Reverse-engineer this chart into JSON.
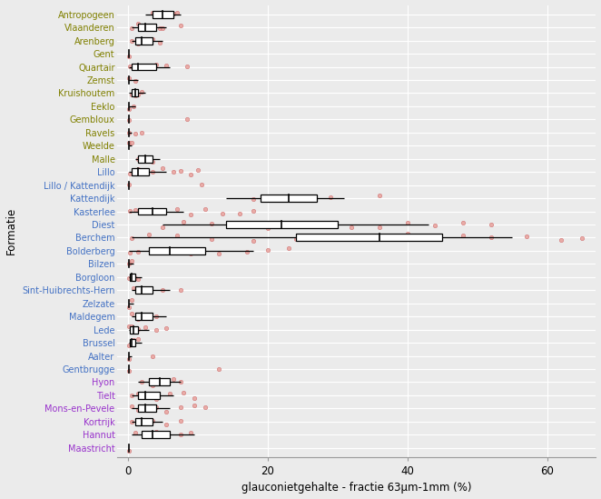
{
  "formations": [
    "Antropogeen",
    "Vlaanderen",
    "Arenberg",
    "Gent",
    "Quartair",
    "Zemst",
    "Kruishoutem",
    "Eeklo",
    "Gembloux",
    "Ravels",
    "Weelde",
    "Malle",
    "Lillo",
    "Lillo / Kattendijk",
    "Kattendijk",
    "Kasterlee",
    "Diest",
    "Berchem",
    "Bolderberg",
    "Bilzen",
    "Borgloon",
    "Sint-Huibrechts-Hern",
    "Zelzate",
    "Maldegem",
    "Lede",
    "Brussel",
    "Aalter",
    "Gentbrugge",
    "Hyon",
    "Tielt",
    "Mons-en-Pevele",
    "Kortrijk",
    "Hannut",
    "Maastricht"
  ],
  "label_colors": {
    "Antropogeen": "#808000",
    "Vlaanderen": "#808000",
    "Arenberg": "#808000",
    "Gent": "#808000",
    "Quartair": "#808000",
    "Zemst": "#808000",
    "Kruishoutem": "#808000",
    "Eeklo": "#808000",
    "Gembloux": "#808000",
    "Ravels": "#808000",
    "Weelde": "#808000",
    "Malle": "#808000",
    "Lillo": "#4472C4",
    "Lillo / Kattendijk": "#4472C4",
    "Kattendijk": "#4472C4",
    "Kasterlee": "#4472C4",
    "Diest": "#4472C4",
    "Berchem": "#4472C4",
    "Bolderberg": "#4472C4",
    "Bilzen": "#4472C4",
    "Borgloon": "#4472C4",
    "Sint-Huibrechts-Hern": "#4472C4",
    "Zelzate": "#4472C4",
    "Maldegem": "#4472C4",
    "Lede": "#4472C4",
    "Brussel": "#4472C4",
    "Aalter": "#4472C4",
    "Gentbrugge": "#4472C4",
    "Hyon": "#9933CC",
    "Tielt": "#9933CC",
    "Mons-en-Pevele": "#9933CC",
    "Kortrijk": "#9933CC",
    "Hannut": "#9933CC",
    "Maastricht": "#9933CC"
  },
  "boxplot_data": {
    "Antropogeen": {
      "min": 2.5,
      "q1": 3.5,
      "median": 5.0,
      "q3": 6.5,
      "max": 7.5
    },
    "Vlaanderen": {
      "min": 0.5,
      "q1": 1.5,
      "median": 2.5,
      "q3": 4.0,
      "max": 5.5
    },
    "Arenberg": {
      "min": 0.5,
      "q1": 1.0,
      "median": 2.0,
      "q3": 3.5,
      "max": 5.0
    },
    "Gent": {
      "min": 0.2,
      "q1": 0.2,
      "median": 0.2,
      "q3": 0.2,
      "max": 0.2
    },
    "Quartair": {
      "min": 0.2,
      "q1": 0.5,
      "median": 1.5,
      "q3": 4.0,
      "max": 6.0
    },
    "Zemst": {
      "min": 0.2,
      "q1": 0.2,
      "median": 0.2,
      "q3": 0.2,
      "max": 1.5
    },
    "Kruishoutem": {
      "min": 0.2,
      "q1": 0.5,
      "median": 1.0,
      "q3": 1.5,
      "max": 2.5
    },
    "Eeklo": {
      "min": 0.2,
      "q1": 0.2,
      "median": 0.2,
      "q3": 0.2,
      "max": 1.0
    },
    "Gembloux": {
      "min": 0.2,
      "q1": 0.2,
      "median": 0.2,
      "q3": 0.2,
      "max": 0.2
    },
    "Ravels": {
      "min": 0.2,
      "q1": 0.2,
      "median": 0.2,
      "q3": 0.2,
      "max": 0.5
    },
    "Weelde": {
      "min": 0.2,
      "q1": 0.2,
      "median": 0.2,
      "q3": 0.2,
      "max": 0.5
    },
    "Malle": {
      "min": 1.0,
      "q1": 1.5,
      "median": 2.5,
      "q3": 3.5,
      "max": 4.5
    },
    "Lillo": {
      "min": 0.2,
      "q1": 0.5,
      "median": 1.5,
      "q3": 3.0,
      "max": 5.5
    },
    "Lillo / Kattendijk": {
      "min": 0.2,
      "q1": 0.2,
      "median": 0.2,
      "q3": 0.2,
      "max": 0.2
    },
    "Kattendijk": {
      "min": 14.0,
      "q1": 19.0,
      "median": 23.0,
      "q3": 27.0,
      "max": 31.0
    },
    "Kasterlee": {
      "min": 0.2,
      "q1": 1.5,
      "median": 3.5,
      "q3": 5.5,
      "max": 8.0
    },
    "Diest": {
      "min": 5.0,
      "q1": 14.0,
      "median": 22.0,
      "q3": 30.0,
      "max": 43.0
    },
    "Berchem": {
      "min": 0.5,
      "q1": 24.0,
      "median": 36.0,
      "q3": 45.0,
      "max": 55.0
    },
    "Bolderberg": {
      "min": 0.2,
      "q1": 3.0,
      "median": 6.0,
      "q3": 11.0,
      "max": 18.0
    },
    "Bilzen": {
      "min": 0.2,
      "q1": 0.2,
      "median": 0.2,
      "q3": 0.2,
      "max": 0.8
    },
    "Borgloon": {
      "min": 0.2,
      "q1": 0.3,
      "median": 0.5,
      "q3": 1.0,
      "max": 2.0
    },
    "Sint-Huibrechts-Hern": {
      "min": 0.5,
      "q1": 1.0,
      "median": 2.0,
      "q3": 3.5,
      "max": 6.0
    },
    "Zelzate": {
      "min": 0.2,
      "q1": 0.2,
      "median": 0.2,
      "q3": 0.2,
      "max": 0.8
    },
    "Maldegem": {
      "min": 0.5,
      "q1": 1.0,
      "median": 2.0,
      "q3": 3.5,
      "max": 5.5
    },
    "Lede": {
      "min": 0.2,
      "q1": 0.3,
      "median": 0.8,
      "q3": 1.5,
      "max": 3.0
    },
    "Brussel": {
      "min": 0.2,
      "q1": 0.3,
      "median": 0.5,
      "q3": 1.0,
      "max": 2.0
    },
    "Aalter": {
      "min": 0.2,
      "q1": 0.2,
      "median": 0.2,
      "q3": 0.2,
      "max": 0.5
    },
    "Gentbrugge": {
      "min": 0.2,
      "q1": 0.2,
      "median": 0.2,
      "q3": 0.2,
      "max": 0.2
    },
    "Hyon": {
      "min": 1.5,
      "q1": 3.0,
      "median": 4.5,
      "q3": 6.0,
      "max": 7.5
    },
    "Tielt": {
      "min": 0.5,
      "q1": 1.5,
      "median": 2.5,
      "q3": 4.5,
      "max": 6.5
    },
    "Mons-en-Pevele": {
      "min": 0.5,
      "q1": 1.5,
      "median": 2.5,
      "q3": 4.0,
      "max": 6.0
    },
    "Kortrijk": {
      "min": 0.5,
      "q1": 1.0,
      "median": 2.0,
      "q3": 3.5,
      "max": 5.0
    },
    "Hannut": {
      "min": 0.5,
      "q1": 2.0,
      "median": 3.5,
      "q3": 6.0,
      "max": 9.5
    },
    "Maastricht": {
      "min": 0.2,
      "q1": 0.2,
      "median": 0.2,
      "q3": 0.2,
      "max": 0.2
    }
  },
  "scatter_points": {
    "Antropogeen": [
      3.5,
      4.0,
      5.5,
      6.5,
      7.0
    ],
    "Vlaanderen": [
      0.5,
      1.5,
      2.0,
      3.0,
      4.5,
      5.0,
      7.5
    ],
    "Arenberg": [
      0.5,
      1.5,
      2.5,
      3.5,
      4.5
    ],
    "Gent": [
      0.2
    ],
    "Quartair": [
      0.3,
      1.0,
      2.0,
      4.0,
      5.5,
      8.5
    ],
    "Zemst": [
      0.2,
      1.0
    ],
    "Kruishoutem": [
      0.5,
      1.0,
      1.5,
      2.0
    ],
    "Eeklo": [
      0.2,
      0.8
    ],
    "Gembloux": [
      0.2,
      8.5
    ],
    "Ravels": [
      0.2,
      1.0,
      2.0
    ],
    "Weelde": [
      0.2,
      0.5
    ],
    "Malle": [
      1.5,
      2.5,
      3.5
    ],
    "Lillo": [
      0.3,
      0.8,
      1.5,
      2.5,
      3.5,
      5.0,
      6.5,
      7.5,
      9.0,
      10.0
    ],
    "Lillo / Kattendijk": [
      0.2,
      10.5
    ],
    "Kattendijk": [
      18.0,
      23.0,
      26.0,
      29.0,
      36.0
    ],
    "Kasterlee": [
      0.3,
      1.0,
      2.0,
      3.5,
      5.0,
      7.0,
      9.0,
      11.0,
      13.5,
      16.0,
      18.0
    ],
    "Diest": [
      5.0,
      8.0,
      12.0,
      16.0,
      20.0,
      24.0,
      28.0,
      32.0,
      36.0,
      40.0,
      44.0,
      48.0,
      52.0
    ],
    "Berchem": [
      0.5,
      3.0,
      7.0,
      12.0,
      18.0,
      24.0,
      30.0,
      36.0,
      40.0,
      44.0,
      48.0,
      52.0,
      57.0,
      62.0,
      65.0
    ],
    "Bolderberg": [
      0.3,
      1.5,
      3.5,
      6.0,
      9.0,
      13.0,
      17.0,
      20.0,
      23.0
    ],
    "Bilzen": [
      0.2,
      0.5
    ],
    "Borgloon": [
      0.2,
      0.5,
      1.0,
      1.5
    ],
    "Sint-Huibrechts-Hern": [
      0.8,
      1.5,
      3.0,
      5.0,
      7.5
    ],
    "Zelzate": [
      0.2,
      0.5
    ],
    "Maldegem": [
      0.5,
      1.5,
      2.5,
      4.0
    ],
    "Lede": [
      0.2,
      0.5,
      1.0,
      1.5,
      2.5,
      4.0,
      5.5
    ],
    "Brussel": [
      0.2,
      0.5,
      0.8,
      1.5
    ],
    "Aalter": [
      0.2,
      3.5
    ],
    "Gentbrugge": [
      0.2,
      13.0
    ],
    "Hyon": [
      2.0,
      3.5,
      5.0,
      6.5,
      7.5
    ],
    "Tielt": [
      0.5,
      1.5,
      2.5,
      4.0,
      6.0,
      8.0,
      9.5
    ],
    "Mons-en-Pevele": [
      0.5,
      1.5,
      2.5,
      4.0,
      5.5,
      7.5,
      9.5,
      11.0
    ],
    "Kortrijk": [
      0.5,
      1.5,
      2.5,
      3.5,
      5.5,
      7.5
    ],
    "Hannut": [
      1.0,
      2.5,
      4.0,
      5.5,
      7.5,
      9.0
    ],
    "Maastricht": [
      0.2
    ]
  },
  "xlabel": "glauconietgehalte - fractie 63μm-1mm (%)",
  "ylabel": "Formatie",
  "xlim": [
    -1.5,
    67
  ],
  "xticks": [
    0,
    20,
    40,
    60
  ],
  "bg_color": "#EBEBEB",
  "grid_color": "#FFFFFF",
  "box_facecolor": "white",
  "box_edgecolor": "#000000",
  "point_fill": "#E8A09A",
  "point_edge": "#CC6666",
  "fig_bg": "#EBEBEB"
}
